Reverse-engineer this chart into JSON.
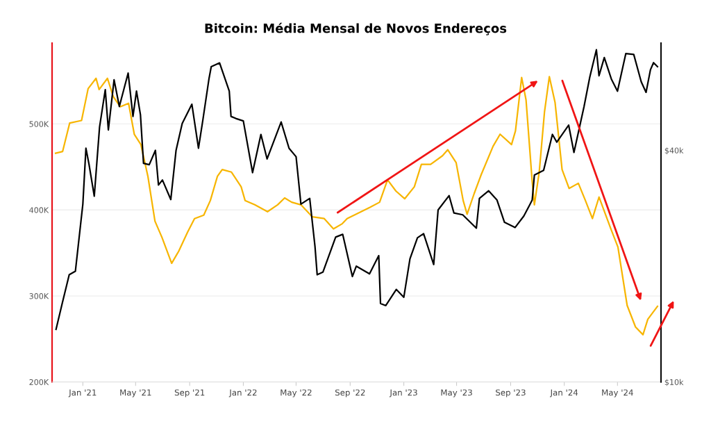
{
  "chart_data": {
    "type": "line",
    "title": "Bitcoin: Média Mensal de Novos Endereços",
    "xlim": [
      "2020-10-23",
      "2024-08-08"
    ],
    "xticks": [
      {
        "value": "2021-01-01",
        "label": "Jan '21"
      },
      {
        "value": "2021-05-01",
        "label": "May '21"
      },
      {
        "value": "2021-09-01",
        "label": "Sep '21"
      },
      {
        "value": "2022-01-01",
        "label": "Jan '22"
      },
      {
        "value": "2022-05-01",
        "label": "May '22"
      },
      {
        "value": "2022-09-01",
        "label": "Sep '22"
      },
      {
        "value": "2023-01-01",
        "label": "Jan '23"
      },
      {
        "value": "2023-05-01",
        "label": "May '23"
      },
      {
        "value": "2023-09-01",
        "label": "Sep '23"
      },
      {
        "value": "2024-01-01",
        "label": "Jan '24"
      },
      {
        "value": "2024-05-01",
        "label": "May '24"
      }
    ],
    "ylim": [
      200000,
      594000
    ],
    "yticks": [
      {
        "value": 200000,
        "label": "200K"
      },
      {
        "value": 300000,
        "label": "300K"
      },
      {
        "value": 400000,
        "label": "400K"
      },
      {
        "value": 500000,
        "label": "500K"
      }
    ],
    "y2lim": [
      10000,
      76000
    ],
    "y2ticks": [
      {
        "value": 10000,
        "label": "$10k"
      },
      {
        "value": 40000,
        "label": "$40k"
      }
    ],
    "log": "y2",
    "grid": "y",
    "legend": false,
    "marker": "none",
    "line_style": "solid",
    "series": [
      {
        "color": "#f7b500",
        "x": [
          "2020-10-31",
          "2020-11-16",
          "2020-12-02",
          "2020-12-29",
          "2021-01-13",
          "2021-01-31",
          "2021-02-07",
          "2021-02-26",
          "2021-03-11",
          "2021-03-27",
          "2021-04-15",
          "2021-04-28",
          "2021-05-13",
          "2021-05-29",
          "2021-06-14",
          "2021-06-30",
          "2021-07-22",
          "2021-08-07",
          "2021-08-27",
          "2021-09-12",
          "2021-10-03",
          "2021-10-18",
          "2021-11-03",
          "2021-11-14",
          "2021-12-05",
          "2021-12-27",
          "2022-01-05",
          "2022-01-27",
          "2022-02-25",
          "2022-03-20",
          "2022-04-05",
          "2022-04-21",
          "2022-05-12",
          "2022-06-07",
          "2022-07-04",
          "2022-07-25",
          "2022-08-14",
          "2022-08-25",
          "2022-09-10",
          "2022-10-16",
          "2022-11-07",
          "2022-11-25",
          "2022-12-14",
          "2023-01-03",
          "2023-01-25",
          "2023-02-10",
          "2023-03-03",
          "2023-03-30",
          "2023-04-11",
          "2023-04-30",
          "2023-05-16",
          "2023-05-25",
          "2023-06-10",
          "2023-06-26",
          "2023-07-23",
          "2023-08-08",
          "2023-09-03",
          "2023-09-12",
          "2023-09-26",
          "2023-10-06",
          "2023-10-20",
          "2023-10-25",
          "2023-11-05",
          "2023-11-17",
          "2023-11-28",
          "2023-12-11",
          "2023-12-27",
          "2024-01-12",
          "2024-02-02",
          "2024-02-18",
          "2024-03-05",
          "2024-03-20",
          "2024-04-16",
          "2024-05-02",
          "2024-05-23",
          "2024-06-11",
          "2024-06-28",
          "2024-07-09",
          "2024-07-31"
        ],
        "values": [
          466000,
          468000,
          501000,
          504000,
          541000,
          553000,
          540000,
          553000,
          532000,
          520000,
          524000,
          488000,
          476000,
          439000,
          387000,
          368000,
          338000,
          352000,
          374000,
          390000,
          394000,
          411000,
          439000,
          447000,
          444000,
          427000,
          411000,
          406000,
          398000,
          406000,
          414000,
          409000,
          406000,
          392000,
          390000,
          378000,
          384000,
          390000,
          394000,
          403000,
          409000,
          435000,
          422000,
          413000,
          427000,
          453000,
          453000,
          463000,
          470000,
          455000,
          411000,
          395000,
          419000,
          441000,
          474000,
          488000,
          476000,
          492000,
          554000,
          528000,
          433000,
          406000,
          444000,
          514000,
          555000,
          525000,
          447000,
          425000,
          431000,
          411000,
          390000,
          415000,
          378000,
          357000,
          289000,
          264000,
          255000,
          273000,
          288000
        ]
      },
      {
        "color": "#000000",
        "axis": "y2",
        "x": [
          "2020-11-01",
          "2020-11-15",
          "2020-12-01",
          "2020-12-15",
          "2021-01-01",
          "2021-01-08",
          "2021-01-15",
          "2021-01-27",
          "2021-02-08",
          "2021-02-21",
          "2021-02-28",
          "2021-03-13",
          "2021-03-25",
          "2021-04-14",
          "2021-04-25",
          "2021-05-03",
          "2021-05-12",
          "2021-05-19",
          "2021-06-01",
          "2021-06-15",
          "2021-06-22",
          "2021-07-01",
          "2021-07-20",
          "2021-08-01",
          "2021-08-15",
          "2021-09-06",
          "2021-09-21",
          "2021-10-01",
          "2021-10-15",
          "2021-10-20",
          "2021-11-08",
          "2021-11-30",
          "2021-12-04",
          "2021-12-15",
          "2022-01-01",
          "2022-01-22",
          "2022-02-10",
          "2022-02-24",
          "2022-03-28",
          "2022-04-15",
          "2022-05-01",
          "2022-05-12",
          "2022-06-01",
          "2022-06-13",
          "2022-06-18",
          "2022-07-01",
          "2022-07-30",
          "2022-08-15",
          "2022-09-06",
          "2022-09-15",
          "2022-10-15",
          "2022-11-05",
          "2022-11-09",
          "2022-11-21",
          "2022-12-15",
          "2023-01-01",
          "2023-01-15",
          "2023-02-01",
          "2023-02-15",
          "2023-03-10",
          "2023-03-20",
          "2023-04-14",
          "2023-04-25",
          "2023-05-15",
          "2023-06-15",
          "2023-06-22",
          "2023-07-13",
          "2023-08-01",
          "2023-08-18",
          "2023-09-11",
          "2023-10-01",
          "2023-10-20",
          "2023-10-25",
          "2023-11-15",
          "2023-12-05",
          "2023-12-15",
          "2024-01-11",
          "2024-01-23",
          "2024-02-15",
          "2024-02-28",
          "2024-03-14",
          "2024-03-20",
          "2024-04-01",
          "2024-04-17",
          "2024-05-01",
          "2024-05-20",
          "2024-06-07",
          "2024-06-24",
          "2024-07-05",
          "2024-07-15",
          "2024-07-22",
          "2024-07-31"
        ],
        "values": [
          13700,
          16000,
          19000,
          19400,
          29000,
          40500,
          36800,
          30400,
          46000,
          57500,
          45200,
          61000,
          52000,
          63500,
          49000,
          57000,
          49500,
          37000,
          36700,
          40000,
          32500,
          33500,
          29800,
          40000,
          47000,
          52700,
          40500,
          48000,
          61500,
          66000,
          67500,
          57000,
          49000,
          48400,
          47700,
          35000,
          44000,
          38000,
          47400,
          40500,
          38500,
          29000,
          30000,
          22500,
          19000,
          19300,
          23800,
          24200,
          18800,
          20000,
          19100,
          21300,
          16000,
          15800,
          17400,
          16600,
          20900,
          23700,
          24300,
          20200,
          28000,
          30500,
          27500,
          27200,
          25100,
          30000,
          31400,
          29700,
          26000,
          25200,
          27000,
          29700,
          34500,
          35500,
          44000,
          42000,
          46500,
          39500,
          52000,
          62000,
          73000,
          62500,
          69700,
          61300,
          57000,
          71400,
          71000,
          60300,
          56600,
          64800,
          67600,
          66000
        ]
      }
    ]
  }
}
